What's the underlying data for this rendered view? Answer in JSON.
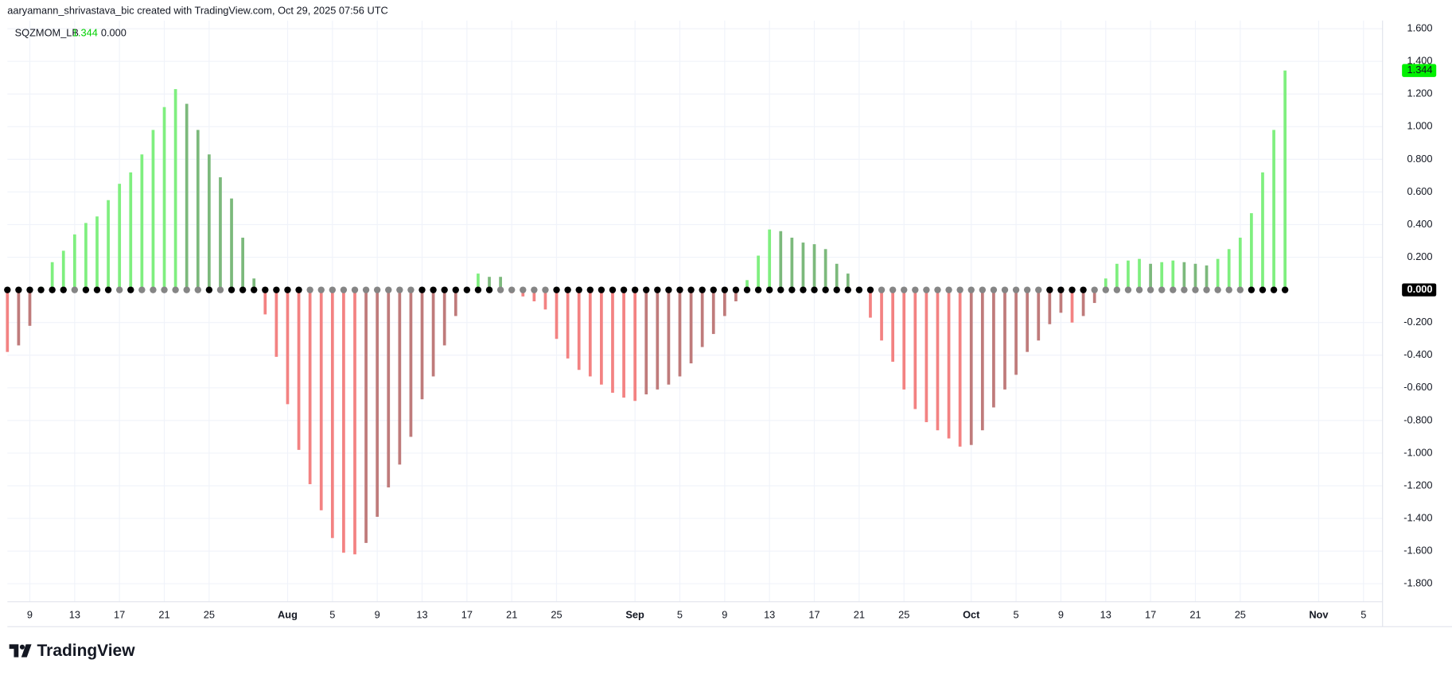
{
  "chart_data": {
    "type": "histogram-squeeze",
    "title": "aaryamann_shrivastava_bic created with TradingView.com, Oct 29, 2025 07:56 UTC",
    "indicator": "SQZMOM_LB",
    "legend_values": [
      "1.344",
      "0.000"
    ],
    "last_value_label": "1.344",
    "zero_label": "0.000",
    "brand": "TradingView",
    "values": [
      -0.38,
      -0.34,
      -0.22,
      0.02,
      0.17,
      0.24,
      0.34,
      0.41,
      0.45,
      0.55,
      0.65,
      0.72,
      0.83,
      0.98,
      1.12,
      1.23,
      1.14,
      0.98,
      0.83,
      0.69,
      0.56,
      0.32,
      0.07,
      -0.15,
      -0.41,
      -0.7,
      -0.98,
      -1.19,
      -1.35,
      -1.52,
      -1.61,
      -1.62,
      -1.55,
      -1.39,
      -1.21,
      -1.07,
      -0.9,
      -0.67,
      -0.53,
      -0.34,
      -0.16,
      -0.01,
      0.1,
      0.08,
      0.08,
      -0.02,
      -0.04,
      -0.07,
      -0.12,
      -0.3,
      -0.42,
      -0.49,
      -0.53,
      -0.58,
      -0.63,
      -0.66,
      -0.68,
      -0.64,
      -0.61,
      -0.58,
      -0.53,
      -0.45,
      -0.35,
      -0.27,
      -0.16,
      -0.07,
      0.06,
      0.21,
      0.37,
      0.36,
      0.32,
      0.29,
      0.28,
      0.25,
      0.16,
      0.1,
      -0.01,
      -0.17,
      -0.31,
      -0.44,
      -0.61,
      -0.73,
      -0.81,
      -0.86,
      -0.91,
      -0.96,
      -0.95,
      -0.86,
      -0.72,
      -0.61,
      -0.52,
      -0.38,
      -0.31,
      -0.21,
      -0.14,
      -0.2,
      -0.16,
      -0.08,
      0.07,
      0.16,
      0.18,
      0.19,
      0.16,
      0.17,
      0.18,
      0.17,
      0.16,
      0.15,
      0.19,
      0.25,
      0.32,
      0.47,
      0.72,
      0.98,
      1.344
    ],
    "squeeze": [
      1,
      1,
      1,
      1,
      1,
      1,
      0,
      1,
      1,
      1,
      0,
      1,
      0,
      0,
      0,
      0,
      0,
      0,
      1,
      0,
      1,
      1,
      1,
      1,
      1,
      1,
      1,
      0,
      0,
      0,
      0,
      0,
      0,
      0,
      0,
      0,
      0,
      1,
      1,
      1,
      1,
      1,
      1,
      1,
      0,
      0,
      0,
      0,
      0,
      1,
      1,
      1,
      1,
      1,
      1,
      1,
      1,
      1,
      1,
      1,
      1,
      1,
      1,
      1,
      1,
      1,
      1,
      1,
      1,
      1,
      1,
      1,
      1,
      1,
      1,
      1,
      1,
      1,
      0,
      0,
      0,
      0,
      0,
      0,
      0,
      0,
      0,
      0,
      0,
      0,
      0,
      0,
      0,
      1,
      1,
      1,
      1,
      0,
      0,
      0,
      0,
      0,
      0,
      0,
      0,
      0,
      0,
      0,
      0,
      0,
      0,
      1,
      1,
      1,
      1
    ],
    "colors": {
      "up_rising": "#7fef7f",
      "up_falling": "#7cb97c",
      "down_falling": "#f38282",
      "down_rising": "#bf7b7b",
      "squeeze_on": "#000000",
      "squeeze_off": "#858585",
      "last_label_bg": "#00f000"
    },
    "xlim": [
      0,
      122.7
    ],
    "xticks": [
      {
        "value": 2,
        "label": "9"
      },
      {
        "value": 6,
        "label": "13"
      },
      {
        "value": 10,
        "label": "17"
      },
      {
        "value": 14,
        "label": "21"
      },
      {
        "value": 18,
        "label": "25"
      },
      {
        "value": 25,
        "label": "Aug"
      },
      {
        "value": 29,
        "label": "5"
      },
      {
        "value": 33,
        "label": "9"
      },
      {
        "value": 37,
        "label": "13"
      },
      {
        "value": 41,
        "label": "17"
      },
      {
        "value": 45,
        "label": "21"
      },
      {
        "value": 49,
        "label": "25"
      },
      {
        "value": 56,
        "label": "Sep"
      },
      {
        "value": 60,
        "label": "5"
      },
      {
        "value": 64,
        "label": "9"
      },
      {
        "value": 68,
        "label": "13"
      },
      {
        "value": 72,
        "label": "17"
      },
      {
        "value": 76,
        "label": "21"
      },
      {
        "value": 80,
        "label": "25"
      },
      {
        "value": 86,
        "label": "Oct"
      },
      {
        "value": 90,
        "label": "5"
      },
      {
        "value": 94,
        "label": "9"
      },
      {
        "value": 98,
        "label": "13"
      },
      {
        "value": 102,
        "label": "17"
      },
      {
        "value": 106,
        "label": "21"
      },
      {
        "value": 110,
        "label": "25"
      },
      {
        "value": 117,
        "label": "Nov"
      },
      {
        "value": 121,
        "label": "5"
      }
    ],
    "ylim": [
      -1.91,
      1.65
    ],
    "yticks": [
      {
        "value": 1.6,
        "label": "1.600"
      },
      {
        "value": 1.4,
        "label": "1.400"
      },
      {
        "value": 1.2,
        "label": "1.200"
      },
      {
        "value": 1.0,
        "label": "1.000"
      },
      {
        "value": 0.8,
        "label": "0.800"
      },
      {
        "value": 0.6,
        "label": "0.600"
      },
      {
        "value": 0.4,
        "label": "0.400"
      },
      {
        "value": 0.2,
        "label": "0.200"
      },
      {
        "value": -0.2,
        "label": "-0.200"
      },
      {
        "value": -0.4,
        "label": "-0.400"
      },
      {
        "value": -0.6,
        "label": "-0.600"
      },
      {
        "value": -0.8,
        "label": "-0.800"
      },
      {
        "value": -1.0,
        "label": "-1.000"
      },
      {
        "value": -1.2,
        "label": "-1.200"
      },
      {
        "value": -1.4,
        "label": "-1.400"
      },
      {
        "value": -1.6,
        "label": "-1.600"
      },
      {
        "value": -1.8,
        "label": "-1.800"
      }
    ],
    "grid": true
  }
}
